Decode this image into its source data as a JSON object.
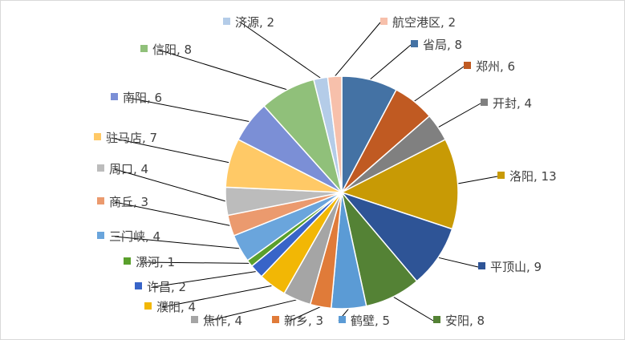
{
  "chart_data": {
    "type": "pie",
    "title": "",
    "label_format": "{name}, {value}",
    "slices": [
      {
        "name": "省局",
        "value": 8,
        "color": "#4472a4"
      },
      {
        "name": "郑州",
        "value": 6,
        "color": "#c05a22"
      },
      {
        "name": "开封",
        "value": 4,
        "color": "#808080"
      },
      {
        "name": "洛阳",
        "value": 13,
        "color": "#c89a05"
      },
      {
        "name": "平顶山",
        "value": 9,
        "color": "#2e5496"
      },
      {
        "name": "安阳",
        "value": 8,
        "color": "#548235"
      },
      {
        "name": "鹤壁",
        "value": 5,
        "color": "#5b9bd5"
      },
      {
        "name": "新乡",
        "value": 3,
        "color": "#e07b39"
      },
      {
        "name": "焦作",
        "value": 4,
        "color": "#a5a5a5"
      },
      {
        "name": "濮阳",
        "value": 4,
        "color": "#f2b705"
      },
      {
        "name": "许昌",
        "value": 2,
        "color": "#3864c8"
      },
      {
        "name": "漯河",
        "value": 1,
        "color": "#5aa02c"
      },
      {
        "name": "三门峡",
        "value": 4,
        "color": "#6aa5dc"
      },
      {
        "name": "商丘",
        "value": 3,
        "color": "#eb9a6e"
      },
      {
        "name": "周口",
        "value": 4,
        "color": "#bcbcbc"
      },
      {
        "name": "驻马店",
        "value": 7,
        "color": "#ffc966"
      },
      {
        "name": "南阳",
        "value": 6,
        "color": "#7b8fd6"
      },
      {
        "name": "信阳",
        "value": 8,
        "color": "#90c07a"
      },
      {
        "name": "济源",
        "value": 2,
        "color": "#b4cce8"
      },
      {
        "name": "航空港区",
        "value": 2,
        "color": "#f7c0ab"
      }
    ],
    "legend": "none"
  }
}
